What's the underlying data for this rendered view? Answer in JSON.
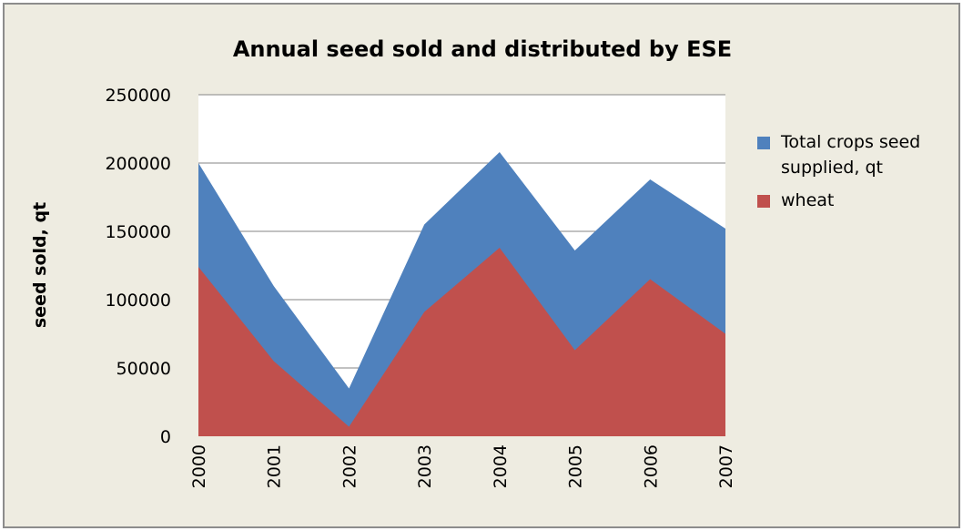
{
  "chart_data": {
    "type": "area",
    "title": "Annual seed sold and distributed by ESE",
    "y_label": "seed sold, qt",
    "categories": [
      "2000",
      "2001",
      "2002",
      "2003",
      "2004",
      "2005",
      "2006",
      "2007"
    ],
    "series": [
      {
        "name": "Total crops seed supplied, qt",
        "color": "#4f81bd",
        "values": [
          200000,
          110000,
          35000,
          155000,
          208000,
          136000,
          188000,
          152000
        ]
      },
      {
        "name": "wheat",
        "color": "#c0504d",
        "values": [
          124000,
          55000,
          7000,
          91000,
          138000,
          63000,
          115000,
          75000
        ]
      }
    ],
    "ylim": [
      0,
      250000
    ],
    "yticks": [
      0,
      50000,
      100000,
      150000,
      200000,
      250000
    ],
    "grid": true,
    "legend": "right"
  }
}
